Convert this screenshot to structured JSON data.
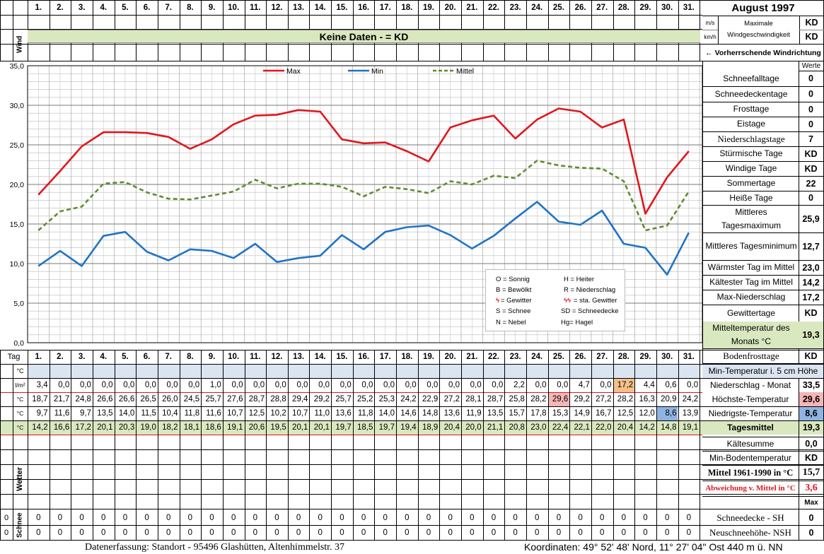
{
  "header": {
    "title": "August 1997",
    "days": [
      "1.",
      "2.",
      "3.",
      "4.",
      "5.",
      "6.",
      "7.",
      "8.",
      "9.",
      "10.",
      "11.",
      "12.",
      "13.",
      "14.",
      "15.",
      "16.",
      "17.",
      "18.",
      "19.",
      "20.",
      "21.",
      "22.",
      "23.",
      "24.",
      "25.",
      "26.",
      "27.",
      "28.",
      "29.",
      "30.",
      "31."
    ],
    "wind_label": "Wind",
    "no_data": "Keine Daten -  = KD",
    "unit_ms": "m/s",
    "unit_kmh": "km/h",
    "max_wind_label": "Maximale Windgeschwindigkeit",
    "max_wind_ms": "KD",
    "max_wind_kmh": "KD",
    "wind_dir_label": "← Vorherrschende Windrichtung",
    "values_label": "Werte"
  },
  "stats": [
    {
      "label": "Schneefalltage",
      "value": "0"
    },
    {
      "label": "Schneedeckentage",
      "value": "0"
    },
    {
      "label": "Frosttage",
      "value": "0"
    },
    {
      "label": "Eistage",
      "value": "0"
    },
    {
      "label": "Niederschlagstage",
      "value": "7"
    },
    {
      "label": "Stürmische Tage",
      "value": "KD"
    },
    {
      "label": "Windige Tage",
      "value": "KD"
    },
    {
      "label": "Sommertage",
      "value": "22"
    },
    {
      "label": "Heiße Tage",
      "value": "0"
    },
    {
      "label": "Mittleres Tagesmaximum",
      "value": "25,9"
    },
    {
      "label": "Mittleres Tagesminimum",
      "value": "12,7"
    },
    {
      "label": "Wärmster Tag im Mittel",
      "value": "23,0"
    },
    {
      "label": "Kältester Tag im Mittel",
      "value": "14,2"
    },
    {
      "label": "Max-Niederschlag",
      "value": "17,2"
    },
    {
      "label": "Gewittertage",
      "value": "KD"
    },
    {
      "label": "Mitteltemperatur des Monats °C",
      "value": "19,3"
    },
    {
      "label": "Bodenfrosttage",
      "value": "KD"
    }
  ],
  "legend_symbols": {
    "o": "O = Sonnig",
    "h": "H = Heiter",
    "b": "B = Bewölkt",
    "r": "R = Niederschlag",
    "g": "= Gewitter",
    "sg": "= sta. Gewitter",
    "s": "S = Schnee",
    "sd": "SD = Schneedecke",
    "n": "N = Nebel",
    "hg": "Hg= Hagel"
  },
  "table": {
    "tag_label": "Tag",
    "unit_c": "°C",
    "unit_lm2": "l/m²",
    "min_5cm_label": "Min-Temperatur i. 5 cm Höhe",
    "precip": [
      "3,4",
      "0,0",
      "0,0",
      "0,0",
      "0,0",
      "0,0",
      "0,0",
      "0,0",
      "1,0",
      "0,0",
      "0,0",
      "0,0",
      "0,0",
      "0,0",
      "0,0",
      "0,0",
      "0,0",
      "0,0",
      "0,0",
      "0,0",
      "0,0",
      "0,0",
      "2,2",
      "0,0",
      "0,0",
      "4,7",
      "0,0",
      "17,2",
      "4,4",
      "0,6",
      "0,0"
    ],
    "tmax": [
      "18,7",
      "21,7",
      "24,8",
      "26,6",
      "26,6",
      "26,5",
      "26,0",
      "24,5",
      "25,7",
      "27,6",
      "28,7",
      "28,8",
      "29,4",
      "29,2",
      "25,7",
      "25,2",
      "25,3",
      "24,2",
      "22,9",
      "27,2",
      "28,1",
      "28,7",
      "25,8",
      "28,2",
      "29,6",
      "29,2",
      "27,2",
      "28,2",
      "16,3",
      "20,9",
      "24,2"
    ],
    "tmin": [
      "9,7",
      "11,6",
      "9,7",
      "13,5",
      "14,0",
      "11,5",
      "10,4",
      "11,8",
      "11,6",
      "10,7",
      "12,5",
      "10,2",
      "10,7",
      "11,0",
      "13,6",
      "11,8",
      "14,0",
      "14,6",
      "14,8",
      "13,6",
      "11,9",
      "13,5",
      "15,7",
      "17,8",
      "15,3",
      "14,9",
      "16,7",
      "12,5",
      "12,0",
      "8,6",
      "13,9"
    ],
    "tmean": [
      "14,2",
      "16,6",
      "17,2",
      "20,1",
      "20,3",
      "19,0",
      "18,2",
      "18,1",
      "18,6",
      "19,1",
      "20,6",
      "19,5",
      "20,1",
      "20,1",
      "19,7",
      "18,5",
      "19,7",
      "19,4",
      "18,9",
      "20,4",
      "20,0",
      "21,1",
      "20,8",
      "23,0",
      "22,4",
      "22,1",
      "22,0",
      "20,4",
      "14,2",
      "14,8",
      "19,1"
    ],
    "precip_label": "Niederschlag - Monat",
    "precip_total": "33,5",
    "tmax_label": "Höchste-Temperatur",
    "tmax_total": "29,6",
    "tmin_label": "Niedrigste-Temperatur",
    "tmin_total": "8,6",
    "tmean_label": "Tagesmittel",
    "tmean_total": "19,3",
    "kaelte_label": "Kältesumme",
    "kaelte_value": "0,0",
    "minboden_label": "Min-Bodentemperatur",
    "minboden_value": "KD",
    "mittel_label": "Mittel 1961-1990 in °C",
    "mittel_value": "15,7",
    "abw_label": "Abweichung v. Mittel in °C",
    "abw_value": "3,6",
    "max_label": "Max",
    "wetter_label": "Wetter",
    "schnee_label": "Schnee",
    "sh_label": "Schneedecke -  SH",
    "sh_value": "0",
    "nsh_label": "Neuschneehöhe- NSH",
    "nsh_value": "0"
  },
  "footer": {
    "left": "Datenerfassung:  Standort -  95496  Glashütten, Altenhimmelstr. 37",
    "right": "Koordinaten:  49° 52' 48' Nord,  11° 27' 04\" Ost   440 m ü. NN"
  },
  "colors": {
    "max": "#e0161c",
    "min": "#1f74c4",
    "mittel": "#5e8c30",
    "green_bar": "#dae8c0",
    "blue_bar": "#dbe5f1",
    "orange_hl": "#f7c08a",
    "pink_hl": "#f4b6b6",
    "blue_hl": "#8fb4e3"
  },
  "chart_data": {
    "type": "line",
    "x": [
      1,
      2,
      3,
      4,
      5,
      6,
      7,
      8,
      9,
      10,
      11,
      12,
      13,
      14,
      15,
      16,
      17,
      18,
      19,
      20,
      21,
      22,
      23,
      24,
      25,
      26,
      27,
      28,
      29,
      30,
      31
    ],
    "series": [
      {
        "name": "Max",
        "values": [
          18.7,
          21.7,
          24.8,
          26.6,
          26.6,
          26.5,
          26.0,
          24.5,
          25.7,
          27.6,
          28.7,
          28.8,
          29.4,
          29.2,
          25.7,
          25.2,
          25.3,
          24.2,
          22.9,
          27.2,
          28.1,
          28.7,
          25.8,
          28.2,
          29.6,
          29.2,
          27.2,
          28.2,
          16.3,
          20.9,
          24.2
        ]
      },
      {
        "name": "Min",
        "values": [
          9.7,
          11.6,
          9.7,
          13.5,
          14.0,
          11.5,
          10.4,
          11.8,
          11.6,
          10.7,
          12.5,
          10.2,
          10.7,
          11.0,
          13.6,
          11.8,
          14.0,
          14.6,
          14.8,
          13.6,
          11.9,
          13.5,
          15.7,
          17.8,
          15.3,
          14.9,
          16.7,
          12.5,
          12.0,
          8.6,
          13.9
        ]
      },
      {
        "name": "Mittel",
        "values": [
          14.2,
          16.6,
          17.2,
          20.1,
          20.3,
          19.0,
          18.2,
          18.1,
          18.6,
          19.1,
          20.6,
          19.5,
          20.1,
          20.1,
          19.7,
          18.5,
          19.7,
          19.4,
          18.9,
          20.4,
          20.0,
          21.1,
          20.8,
          23.0,
          22.4,
          22.1,
          22.0,
          20.4,
          14.2,
          14.8,
          19.1
        ]
      }
    ],
    "yticks": [
      "0,0",
      "5,0",
      "10,0",
      "15,0",
      "20,0",
      "25,0",
      "30,0",
      "35,0"
    ],
    "ylim": [
      0,
      35
    ],
    "grid": true,
    "legend_position": "top"
  }
}
